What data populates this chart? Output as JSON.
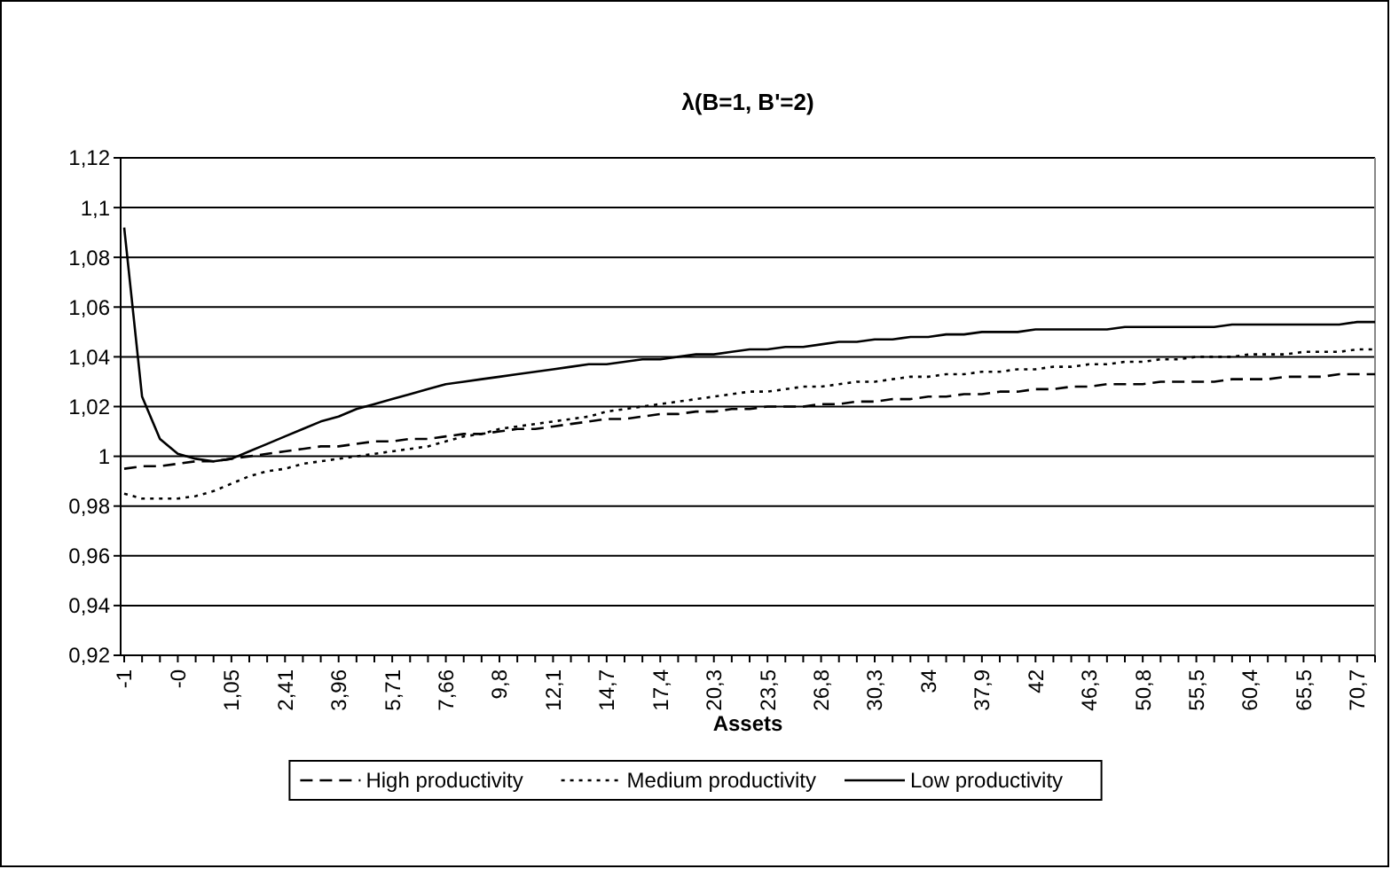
{
  "chart_data": {
    "type": "line",
    "title": "λ(B=1, B'=2)",
    "xlabel": "Assets",
    "categories": [
      "-1",
      null,
      null,
      "-0",
      null,
      null,
      "1,05",
      null,
      null,
      "2,41",
      null,
      null,
      "3,96",
      null,
      null,
      "5,71",
      null,
      null,
      "7,66",
      null,
      null,
      "9,8",
      null,
      null,
      "12,1",
      null,
      null,
      "14,7",
      null,
      null,
      "17,4",
      null,
      null,
      "20,3",
      null,
      null,
      "23,5",
      null,
      null,
      "26,8",
      null,
      null,
      "30,3",
      null,
      null,
      "34",
      null,
      null,
      "37,9",
      null,
      null,
      "42",
      null,
      null,
      "46,3",
      null,
      null,
      "50,8",
      null,
      null,
      "55,5",
      null,
      null,
      "60,4",
      null,
      null,
      "65,5",
      null,
      null,
      "70,7",
      null
    ],
    "ylim": [
      0.92,
      1.12
    ],
    "yticks": [
      {
        "value": 0.92,
        "label": "0,92"
      },
      {
        "value": 0.94,
        "label": "0,94"
      },
      {
        "value": 0.96,
        "label": "0,96"
      },
      {
        "value": 0.98,
        "label": "0,98"
      },
      {
        "value": 1,
        "label": "1"
      },
      {
        "value": 1.02,
        "label": "1,02"
      },
      {
        "value": 1.04,
        "label": "1,04"
      },
      {
        "value": 1.06,
        "label": "1,06"
      },
      {
        "value": 1.08,
        "label": "1,08"
      },
      {
        "value": 1.1,
        "label": "1,1"
      },
      {
        "value": 1.12,
        "label": "1,12"
      }
    ],
    "grid": "y",
    "legend": "bottom",
    "series": [
      {
        "name": "High productivity",
        "color": "#000000",
        "line_style": "dashed",
        "values": [
          0.995,
          0.996,
          0.996,
          0.997,
          0.998,
          0.998,
          0.999,
          1.0,
          1.001,
          1.002,
          1.003,
          1.004,
          1.004,
          1.005,
          1.006,
          1.006,
          1.007,
          1.007,
          1.008,
          1.009,
          1.009,
          1.01,
          1.011,
          1.011,
          1.012,
          1.013,
          1.014,
          1.015,
          1.015,
          1.016,
          1.017,
          1.017,
          1.018,
          1.018,
          1.019,
          1.019,
          1.02,
          1.02,
          1.02,
          1.021,
          1.021,
          1.022,
          1.022,
          1.023,
          1.023,
          1.024,
          1.024,
          1.025,
          1.025,
          1.026,
          1.026,
          1.027,
          1.027,
          1.028,
          1.028,
          1.029,
          1.029,
          1.029,
          1.03,
          1.03,
          1.03,
          1.03,
          1.031,
          1.031,
          1.031,
          1.032,
          1.032,
          1.032,
          1.033,
          1.033,
          1.033
        ]
      },
      {
        "name": "Medium productivity",
        "color": "#000000",
        "line_style": "dotted",
        "values": [
          0.985,
          0.983,
          0.983,
          0.983,
          0.984,
          0.986,
          0.989,
          0.992,
          0.994,
          0.995,
          0.997,
          0.998,
          0.999,
          1.0,
          1.001,
          1.002,
          1.003,
          1.004,
          1.006,
          1.008,
          1.009,
          1.011,
          1.012,
          1.013,
          1.014,
          1.015,
          1.016,
          1.018,
          1.019,
          1.02,
          1.021,
          1.022,
          1.023,
          1.024,
          1.025,
          1.026,
          1.026,
          1.027,
          1.028,
          1.028,
          1.029,
          1.03,
          1.03,
          1.031,
          1.032,
          1.032,
          1.033,
          1.033,
          1.034,
          1.034,
          1.035,
          1.035,
          1.036,
          1.036,
          1.037,
          1.037,
          1.038,
          1.038,
          1.039,
          1.039,
          1.04,
          1.04,
          1.04,
          1.041,
          1.041,
          1.041,
          1.042,
          1.042,
          1.042,
          1.043,
          1.043
        ]
      },
      {
        "name": "Low productivity",
        "color": "#000000",
        "line_style": "solid",
        "values": [
          1.092,
          1.024,
          1.007,
          1.001,
          0.999,
          0.998,
          0.999,
          1.002,
          1.005,
          1.008,
          1.011,
          1.014,
          1.016,
          1.019,
          1.021,
          1.023,
          1.025,
          1.027,
          1.029,
          1.03,
          1.031,
          1.032,
          1.033,
          1.034,
          1.035,
          1.036,
          1.037,
          1.037,
          1.038,
          1.039,
          1.039,
          1.04,
          1.041,
          1.041,
          1.042,
          1.043,
          1.043,
          1.044,
          1.044,
          1.045,
          1.046,
          1.046,
          1.047,
          1.047,
          1.048,
          1.048,
          1.049,
          1.049,
          1.05,
          1.05,
          1.05,
          1.051,
          1.051,
          1.051,
          1.051,
          1.051,
          1.052,
          1.052,
          1.052,
          1.052,
          1.052,
          1.052,
          1.053,
          1.053,
          1.053,
          1.053,
          1.053,
          1.053,
          1.053,
          1.054,
          1.054
        ]
      }
    ]
  }
}
